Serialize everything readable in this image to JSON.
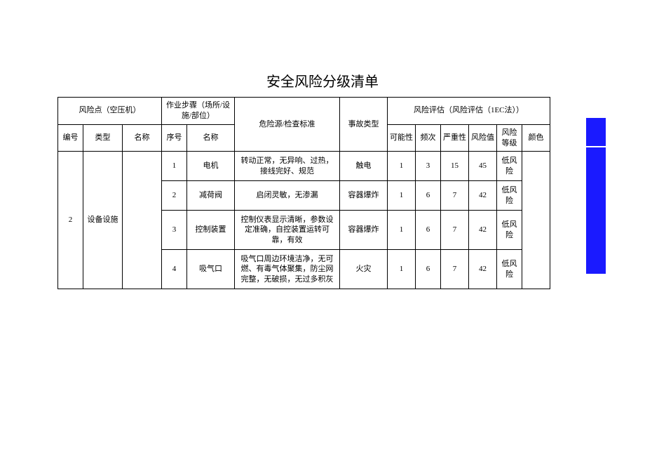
{
  "title": "安全风险分级清单",
  "headers": {
    "risk_point_group": "风险点（空压机）",
    "step_group": "作业步骤（场所/设施/部位）",
    "hazard": "危险源/检查标准",
    "accident": "事故类型",
    "evaluation_group": "风险评估（风险评估（1EC法））",
    "no": "编号",
    "type": "类型",
    "name": "名称",
    "seq": "序号",
    "step_name": "名称",
    "possibility": "可能性",
    "frequency": "频次",
    "severity": "严重性",
    "risk_value": "风险值",
    "risk_level": "风险等级",
    "color": "颜色"
  },
  "group": {
    "no": "2",
    "type": "设备设施",
    "name": ""
  },
  "rows": [
    {
      "seq": "1",
      "step": "电机",
      "hazard": "转动正常，无异响、过热，接线完好、规范",
      "accident": "触电",
      "poss": "1",
      "freq": "3",
      "sev": "15",
      "val": "45",
      "level": "低风险"
    },
    {
      "seq": "2",
      "step": "减荷阀",
      "hazard": "启闭灵敏，无渗漏",
      "accident": "容器爆炸",
      "poss": "1",
      "freq": "6",
      "sev": "7",
      "val": "42",
      "level": "低风险"
    },
    {
      "seq": "3",
      "step": "控制装置",
      "hazard": "控制仪表显示清晰，参数设定准确，自控装置运转可靠，有效",
      "accident": "容器爆炸",
      "poss": "1",
      "freq": "6",
      "sev": "7",
      "val": "42",
      "level": "低风险"
    },
    {
      "seq": "4",
      "step": "吸气口",
      "hazard": "吸气口周边环境洁净，无可燃、有毒气体聚集，防尘网完整，无破损，无过多积灰",
      "accident": "火灾",
      "poss": "1",
      "freq": "6",
      "sev": "7",
      "val": "42",
      "level": "低风险"
    }
  ],
  "colwidths": {
    "no": 36,
    "type": 56,
    "name": 56,
    "seq": 36,
    "step": 68,
    "hazard": 150,
    "accident": 68,
    "poss": 40,
    "freq": 36,
    "sev": 40,
    "val": 40,
    "level": 36,
    "color": 40
  },
  "chip_color": "#1a1aff"
}
